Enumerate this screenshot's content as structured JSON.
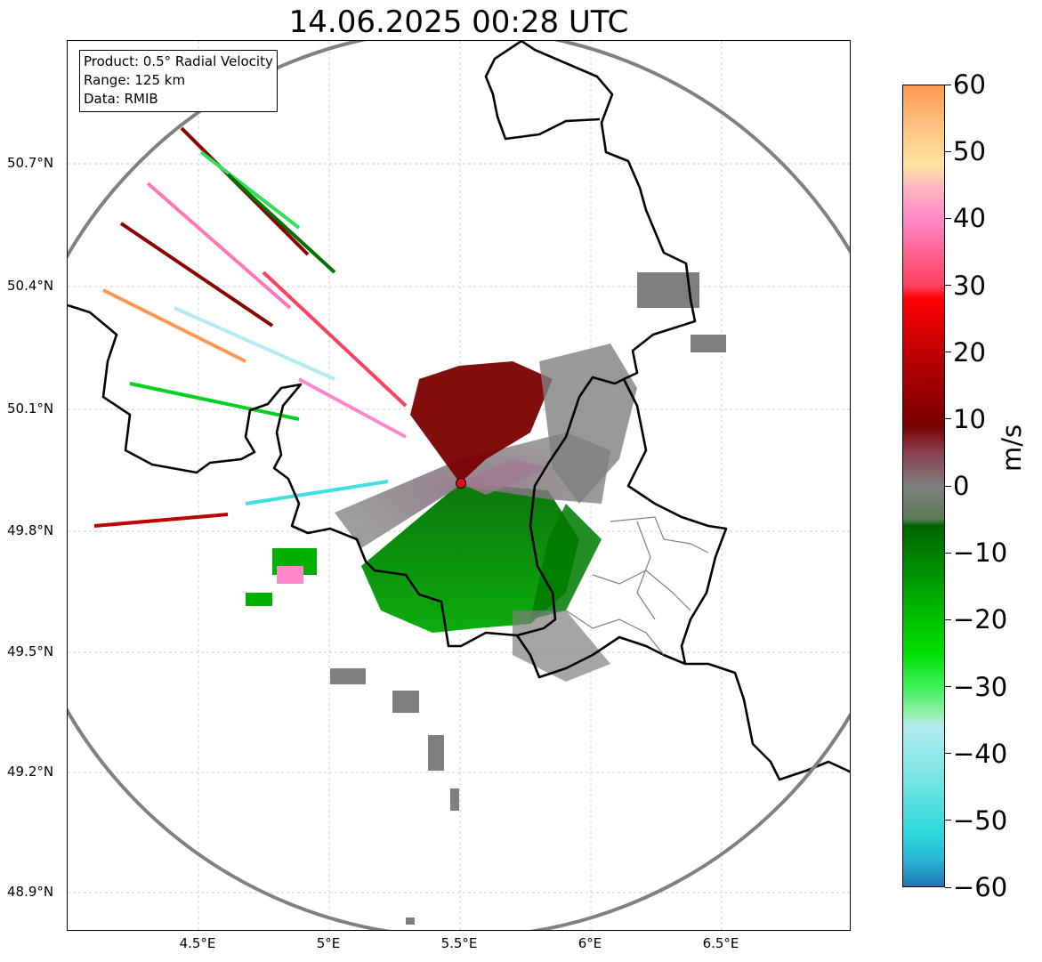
{
  "title": "14.06.2025 00:28 UTC",
  "info_box": {
    "product": "Product: 0.5° Radial Velocity",
    "range": "Range: 125 km",
    "data": "Data: RMIB"
  },
  "radar": {
    "site_marker_color": "#e01010",
    "range_ring_color": "#808080"
  },
  "axes": {
    "latitude_ticks": [
      "50.7°N",
      "50.4°N",
      "50.1°N",
      "49.8°N",
      "49.5°N",
      "49.2°N",
      "48.9°N"
    ],
    "longitude_ticks": [
      "4.5°E",
      "5°E",
      "5.5°E",
      "6°E",
      "6.5°E"
    ],
    "lat_values": [
      50.7,
      50.4,
      50.1,
      49.8,
      49.5,
      49.2,
      48.9
    ],
    "lon_values": [
      4.5,
      5.0,
      5.5,
      6.0,
      6.5
    ],
    "lat_range": [
      48.8,
      50.98
    ],
    "lon_range": [
      4.0,
      7.0
    ],
    "grid": "dashed light gray"
  },
  "colorbar": {
    "unit": "m/s",
    "ticks": [
      "60",
      "50",
      "40",
      "30",
      "20",
      "10",
      "0",
      "−10",
      "−20",
      "−30",
      "−40",
      "−50",
      "−60"
    ],
    "tick_values": [
      60,
      50,
      40,
      30,
      20,
      10,
      0,
      -10,
      -20,
      -30,
      -40,
      -50,
      -60
    ],
    "range": [
      -60,
      60
    ],
    "stops": [
      {
        "v": -60,
        "c": "#1f77b4"
      },
      {
        "v": -56,
        "c": "#29b6d6"
      },
      {
        "v": -52,
        "c": "#2dd8dc"
      },
      {
        "v": -45,
        "c": "#6ee3e3"
      },
      {
        "v": -36,
        "c": "#b3ecf0"
      },
      {
        "v": -34,
        "c": "#90f0a8"
      },
      {
        "v": -30,
        "c": "#3cf05a"
      },
      {
        "v": -25,
        "c": "#00e000"
      },
      {
        "v": -15,
        "c": "#00a000"
      },
      {
        "v": -6,
        "c": "#006400"
      },
      {
        "v": -5,
        "c": "#5a7a55"
      },
      {
        "v": 0,
        "c": "#7f7f7f"
      },
      {
        "v": 5,
        "c": "#8a4050"
      },
      {
        "v": 9,
        "c": "#7a0000"
      },
      {
        "v": 20,
        "c": "#c00000"
      },
      {
        "v": 28,
        "c": "#ff0000"
      },
      {
        "v": 30,
        "c": "#ff4060"
      },
      {
        "v": 40,
        "c": "#ff88c8"
      },
      {
        "v": 45,
        "c": "#ffb8c0"
      },
      {
        "v": 48,
        "c": "#ffe5a0"
      },
      {
        "v": 54,
        "c": "#ffc080"
      },
      {
        "v": 60,
        "c": "#ff9950"
      }
    ]
  }
}
